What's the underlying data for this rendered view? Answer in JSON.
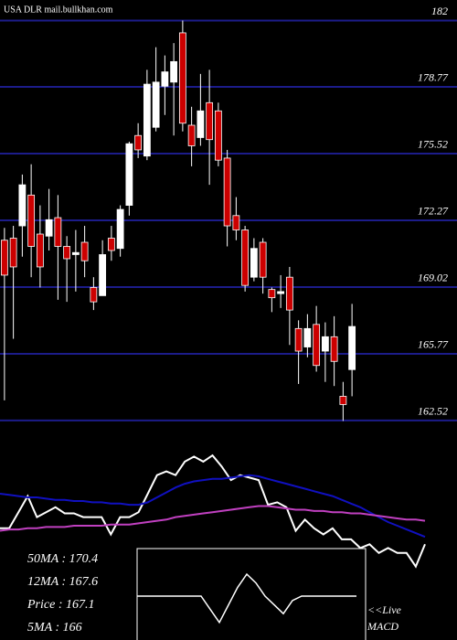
{
  "chart_data": [
    {
      "type": "candlestick",
      "title": "USA DLR mail.bullkhan.com",
      "open": [
        171.3,
        171.4,
        172.0,
        173.5,
        171.6,
        171.5,
        172.4,
        171.0,
        170.6,
        171.2,
        169.0,
        168.6,
        171.4,
        170.9,
        173.0,
        176.4,
        175.4,
        176.8,
        178.8,
        179.0,
        181.4,
        176.9,
        176.3,
        178.0,
        177.6,
        175.3,
        172.5,
        171.8,
        169.5,
        171.2,
        168.9,
        168.7,
        169.5,
        167.0,
        166.1,
        167.2,
        165.9,
        166.6,
        163.7,
        165.0
      ],
      "high": [
        171.9,
        172.0,
        174.5,
        175.0,
        173.0,
        173.8,
        173.5,
        171.5,
        171.8,
        172.0,
        169.5,
        171.3,
        172.0,
        173.0,
        176.1,
        177.0,
        179.6,
        180.7,
        180.3,
        180.9,
        182.0,
        177.8,
        179.4,
        179.6,
        178.0,
        175.7,
        173.4,
        172.0,
        171.4,
        171.4,
        169.0,
        169.6,
        170.0,
        167.4,
        167.7,
        168.1,
        167.3,
        167.6,
        164.4,
        168.2
      ],
      "low": [
        163.5,
        166.5,
        170.5,
        169.5,
        169.0,
        170.8,
        168.4,
        168.3,
        168.8,
        169.5,
        167.9,
        168.6,
        170.3,
        170.5,
        172.5,
        175.3,
        175.2,
        176.6,
        177.4,
        176.4,
        176.6,
        174.9,
        175.9,
        174.0,
        174.9,
        171.0,
        171.3,
        168.8,
        169.3,
        168.7,
        167.8,
        168.0,
        166.2,
        164.3,
        165.6,
        164.9,
        164.4,
        164.2,
        162.5,
        163.7
      ],
      "close": [
        169.6,
        170.0,
        174.0,
        171.0,
        170.0,
        172.3,
        171.0,
        170.4,
        170.7,
        170.3,
        168.3,
        170.6,
        170.8,
        172.8,
        176.0,
        175.7,
        178.9,
        179.0,
        179.5,
        180.0,
        177.0,
        175.9,
        177.6,
        176.2,
        175.2,
        172.0,
        171.8,
        169.1,
        170.9,
        169.5,
        168.5,
        168.8,
        167.9,
        165.9,
        167.0,
        165.2,
        166.6,
        165.4,
        163.3,
        167.1
      ],
      "up_color": "#ffffff",
      "down_color": "#cc0000",
      "grid_color": "#1c1c8a",
      "ylim": [
        162.25,
        183
      ],
      "yticks": [
        182,
        178.77,
        175.52,
        172.27,
        169.02,
        165.77,
        162.52
      ],
      "annotations": [
        "50MA : 170.4",
        "12MA : 167.6",
        "Price  : 167.1",
        "5MA : 166"
      ]
    },
    {
      "type": "line",
      "ylim": [
        0,
        100
      ],
      "series": [
        {
          "color": "#ffffff",
          "values": [
            35,
            35,
            48,
            61,
            44,
            48,
            52,
            47,
            47,
            44,
            44,
            44,
            30,
            44,
            44,
            48,
            63,
            78,
            81,
            78,
            89,
            93,
            89,
            94,
            85,
            74,
            78,
            76,
            74,
            54,
            56,
            52,
            33,
            42,
            35,
            30,
            35,
            26,
            26,
            19,
            22,
            15,
            19,
            15,
            15,
            4,
            22
          ]
        },
        {
          "color": "#1010c0",
          "values": [
            63,
            62,
            61,
            60,
            60,
            59,
            58,
            58,
            57,
            57,
            56,
            56,
            55,
            55,
            54,
            54,
            56,
            60,
            64,
            68,
            71,
            73,
            74,
            75,
            75,
            76,
            77,
            78,
            77,
            75,
            73,
            71,
            69,
            67,
            65,
            63,
            61,
            58,
            55,
            52,
            48,
            44,
            40,
            37,
            34,
            31,
            28
          ]
        },
        {
          "color": "#c040c0",
          "values": [
            33,
            34,
            34,
            35,
            35,
            36,
            36,
            36,
            37,
            37,
            37,
            37,
            38,
            38,
            38,
            39,
            40,
            41,
            42,
            44,
            45,
            46,
            47,
            48,
            49,
            50,
            51,
            52,
            53,
            53,
            52,
            51,
            50,
            50,
            49,
            49,
            48,
            48,
            47,
            47,
            46,
            45,
            44,
            43,
            42,
            42,
            41
          ]
        }
      ]
    },
    {
      "type": "macd",
      "ylim": [
        -10,
        10
      ],
      "color": "#ffffff",
      "values": [
        0,
        0,
        0,
        0,
        0,
        0,
        0,
        0,
        -3,
        -6,
        -2,
        2,
        5,
        3,
        0,
        -2,
        -4,
        -1,
        0,
        0,
        0,
        0,
        0,
        0,
        0
      ],
      "annotations": [
        "<<Live",
        "MACD"
      ]
    }
  ]
}
